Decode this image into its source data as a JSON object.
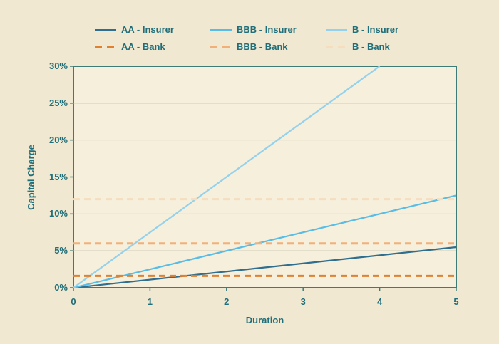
{
  "colors": {
    "background": "#f0e8d1",
    "plot_background": "#f5efdc",
    "axis": "#3e7b77",
    "gridline": "#c5c0ae",
    "label_text": "#1f6e79"
  },
  "chart_data": {
    "type": "line",
    "title": "",
    "xlabel": "Duration",
    "ylabel": "Capital Charge",
    "xlim": [
      0,
      5
    ],
    "ylim": [
      0,
      30
    ],
    "x_ticks": [
      0,
      1,
      2,
      3,
      4,
      5
    ],
    "x_tick_labels": [
      "0",
      "1",
      "2",
      "3",
      "4",
      "5"
    ],
    "y_ticks": [
      0,
      5,
      10,
      15,
      20,
      25,
      30
    ],
    "y_tick_labels": [
      "0%",
      "5%",
      "10%",
      "15%",
      "20%",
      "25%",
      "30%"
    ],
    "grid": "horizontal",
    "legend_position": "top",
    "series": [
      {
        "name": "AA - Insurer",
        "style": "solid",
        "color": "#2f6e8e",
        "points": [
          [
            0,
            0
          ],
          [
            5,
            5.5
          ]
        ]
      },
      {
        "name": "BBB - Insurer",
        "style": "solid",
        "color": "#58bce6",
        "points": [
          [
            0,
            0
          ],
          [
            5,
            12.5
          ]
        ]
      },
      {
        "name": "B - Insurer",
        "style": "solid",
        "color": "#93d1ec",
        "points": [
          [
            0,
            0
          ],
          [
            4,
            30
          ]
        ]
      },
      {
        "name": "AA - Bank",
        "style": "dashed",
        "color": "#df812e",
        "points": [
          [
            0,
            1.6
          ],
          [
            5,
            1.6
          ]
        ]
      },
      {
        "name": "BBB - Bank",
        "style": "dashed",
        "color": "#f1b078",
        "points": [
          [
            0,
            6
          ],
          [
            5,
            6
          ]
        ]
      },
      {
        "name": "B - Bank",
        "style": "dashed",
        "color": "#f6ddbd",
        "points": [
          [
            0,
            12
          ],
          [
            5,
            12
          ]
        ]
      }
    ]
  }
}
